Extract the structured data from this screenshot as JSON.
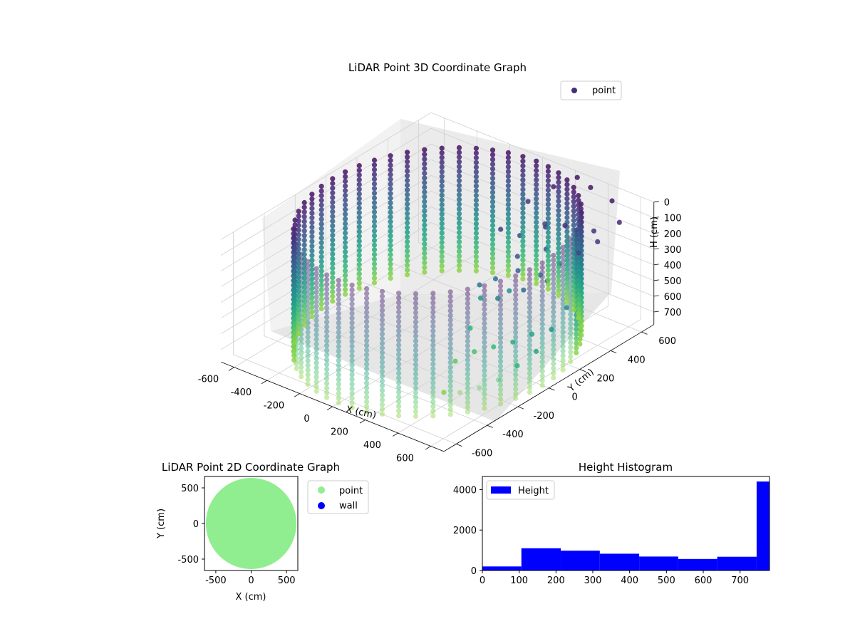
{
  "chart_data": [
    {
      "type": "scatter",
      "projection": "3d",
      "title": "LiDAR Point 3D Coordinate Graph",
      "xlabel": "X (cm)",
      "ylabel": "Y (cm)",
      "zlabel": "H (cm)",
      "xlim": [
        -680,
        680
      ],
      "ylim": [
        -680,
        680
      ],
      "zlim": [
        780,
        0
      ],
      "z_axis_inverted": true,
      "x_ticks": [
        -600,
        -400,
        -200,
        0,
        200,
        400,
        600
      ],
      "y_ticks": [
        -600,
        -400,
        -200,
        0,
        200,
        400,
        600
      ],
      "z_ticks": [
        0,
        100,
        200,
        300,
        400,
        500,
        600,
        700
      ],
      "colormap": "viridis",
      "grid": true,
      "legend": {
        "position": "top-right",
        "entries": [
          "point"
        ]
      },
      "series": [
        {
          "name": "point",
          "color": "#472c7a",
          "description_of_shape": "cylindrical wall of radius ~640 cm sampled in vertical strips, plus interior scattered points",
          "wall_radius": 640,
          "wall_height": [
            0,
            780
          ],
          "interior_points": [
            [
              150,
              250,
              140
            ],
            [
              220,
              300,
              180
            ],
            [
              300,
              200,
              220
            ],
            [
              350,
              150,
              260
            ],
            [
              420,
              220,
              300
            ],
            [
              260,
              100,
              320
            ],
            [
              200,
              60,
              360
            ],
            [
              330,
              40,
              380
            ],
            [
              450,
              80,
              300
            ],
            [
              520,
              160,
              260
            ],
            [
              380,
              300,
              200
            ],
            [
              480,
              280,
              240
            ],
            [
              560,
              320,
              160
            ],
            [
              600,
              400,
              120
            ],
            [
              620,
              520,
              60
            ],
            [
              500,
              600,
              20
            ],
            [
              350,
              620,
              10
            ],
            [
              250,
              640,
              0
            ],
            [
              180,
              560,
              40
            ],
            [
              100,
              480,
              120
            ],
            [
              260,
              420,
              160
            ],
            [
              320,
              360,
              120
            ],
            [
              420,
              380,
              80
            ],
            [
              540,
              440,
              100
            ],
            [
              600,
              200,
              420
            ],
            [
              620,
              80,
              480
            ],
            [
              640,
              -40,
              540
            ],
            [
              600,
              -120,
              600
            ],
            [
              560,
              -200,
              660
            ],
            [
              500,
              -260,
              700
            ],
            [
              420,
              -300,
              740
            ],
            [
              340,
              -320,
              760
            ],
            [
              250,
              -150,
              700
            ],
            [
              300,
              -80,
              660
            ],
            [
              380,
              -40,
              620
            ],
            [
              460,
              0,
              580
            ],
            [
              520,
              60,
              540
            ],
            [
              200,
              0,
              600
            ],
            [
              150,
              120,
              500
            ],
            [
              250,
              200,
              460
            ]
          ]
        }
      ]
    },
    {
      "type": "scatter",
      "title": "LiDAR Point 2D Coordinate Graph",
      "xlabel": "X (cm)",
      "ylabel": "Y (cm)",
      "xlim": [
        -660,
        660
      ],
      "ylim": [
        -660,
        660
      ],
      "x_ticks": [
        -500,
        0,
        500
      ],
      "y_ticks": [
        -500,
        0,
        500
      ],
      "legend": {
        "position": "outside-right",
        "entries": [
          "point",
          "wall"
        ]
      },
      "series": [
        {
          "name": "point",
          "color": "#90ee90",
          "shape": "filled disk radius ~640 cm"
        },
        {
          "name": "wall",
          "color": "#0000ff",
          "shape": "none visible"
        }
      ]
    },
    {
      "type": "histogram",
      "title": "Height Histogram",
      "xlabel": "",
      "ylabel": "",
      "xlim": [
        0,
        780
      ],
      "ylim": [
        0,
        4650
      ],
      "x_ticks": [
        0,
        100,
        200,
        300,
        400,
        500,
        600,
        700
      ],
      "y_ticks": [
        0,
        2000,
        4000
      ],
      "legend": {
        "position": "top-left",
        "entries": [
          "Height"
        ]
      },
      "series": [
        {
          "name": "Height",
          "color": "#0000ff",
          "bin_edges": [
            0,
            106,
            213,
            319,
            426,
            532,
            638,
            745,
            780
          ],
          "counts": [
            200,
            1100,
            980,
            830,
            690,
            570,
            680,
            4400
          ]
        }
      ]
    }
  ]
}
